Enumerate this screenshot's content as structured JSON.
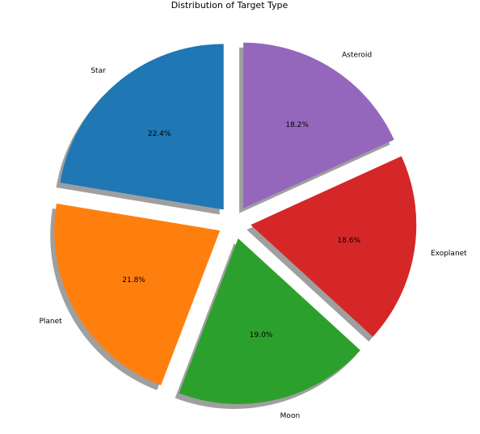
{
  "chart_data": {
    "type": "pie",
    "title": "Distribution of Target Type",
    "start_angle_deg": 90,
    "direction": "counterclockwise",
    "explode": 0.1,
    "shadow": true,
    "slices": [
      {
        "label": "Star",
        "value": 22.4,
        "pct_label": "22.4%",
        "color": "#1f77b4"
      },
      {
        "label": "Planet",
        "value": 21.8,
        "pct_label": "21.8%",
        "color": "#ff7f0e"
      },
      {
        "label": "Moon",
        "value": 19.0,
        "pct_label": "19.0%",
        "color": "#2ca02c"
      },
      {
        "label": "Exoplanet",
        "value": 18.6,
        "pct_label": "18.6%",
        "color": "#d62728"
      },
      {
        "label": "Asteroid",
        "value": 18.2,
        "pct_label": "18.2%",
        "color": "#9467bd"
      }
    ]
  }
}
